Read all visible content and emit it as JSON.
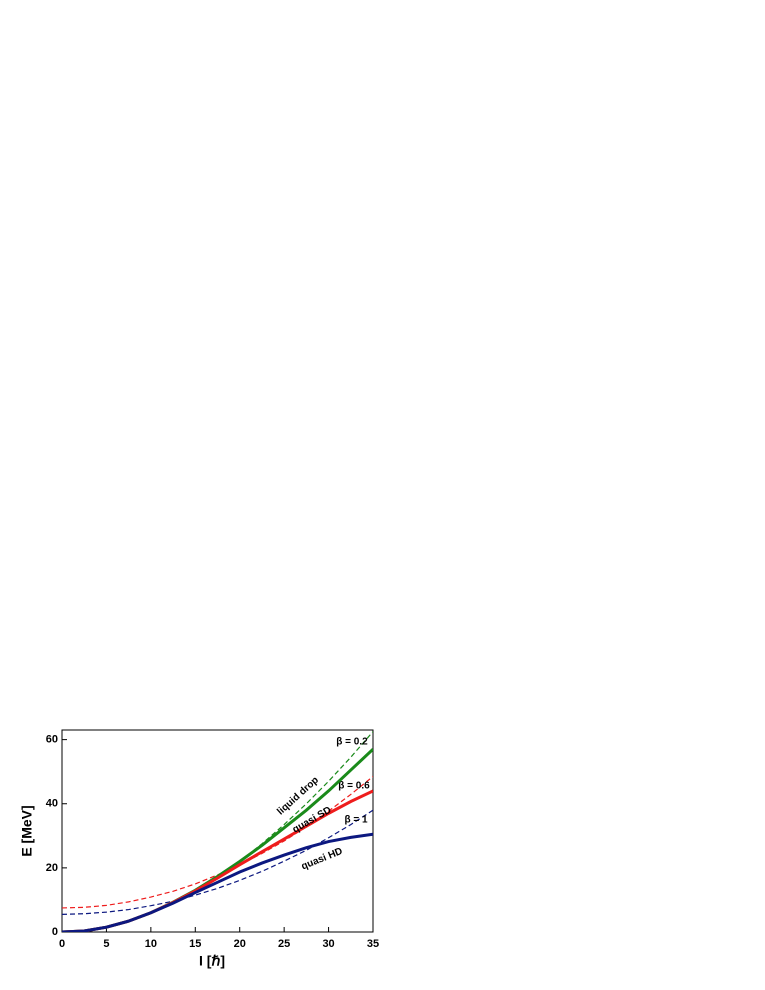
{
  "chart_data": {
    "type": "line",
    "xlabel": "I [ℏ]",
    "ylabel": "E [MeV]",
    "x": [
      0,
      2.5,
      5,
      7.5,
      10,
      12.5,
      15,
      17.5,
      20,
      22.5,
      25,
      27.5,
      30,
      32.5,
      35
    ],
    "series": [
      {
        "name": "liquid drop",
        "color": "#1a8a1a",
        "dashed": false,
        "values": [
          0,
          0.3,
          1.5,
          3.4,
          6,
          9.3,
          13,
          17.3,
          22,
          27,
          32.5,
          38,
          44,
          50.5,
          57
        ]
      },
      {
        "name": "quasi SD",
        "color": "#ee1c1c",
        "dashed": false,
        "values": [
          0,
          0.3,
          1.5,
          3.4,
          6,
          9.2,
          12.8,
          16.8,
          21,
          25,
          29,
          33,
          37,
          40.7,
          44
        ]
      },
      {
        "name": "quasi HD",
        "color": "#0c1880",
        "dashed": false,
        "values": [
          0,
          0.3,
          1.5,
          3.4,
          6,
          9,
          12.3,
          15.5,
          18.7,
          21.5,
          24,
          26.3,
          28.2,
          29.5,
          30.5
        ]
      },
      {
        "name": "β = 0.2",
        "color": "#1a8a1a",
        "dashed": true,
        "values": [
          null,
          null,
          null,
          null,
          null,
          9,
          12.7,
          17,
          22,
          27.5,
          33.5,
          40,
          47,
          54.5,
          62.5
        ]
      },
      {
        "name": "β = 0.6",
        "color": "#ee1c1c",
        "dashed": true,
        "values": [
          7.5,
          7.7,
          8.3,
          9.4,
          10.9,
          12.7,
          15,
          17.8,
          20.9,
          24.5,
          28.4,
          32.8,
          37.7,
          42.9,
          48.5
        ]
      },
      {
        "name": "β = 1",
        "color": "#0c1880",
        "dashed": true,
        "values": [
          5.5,
          5.7,
          6.2,
          7,
          8.2,
          9.6,
          11.5,
          13.6,
          16.1,
          18.9,
          22.1,
          25.5,
          29.4,
          33.5,
          38
        ]
      }
    ],
    "xlim": [
      0,
      35
    ],
    "xticks": [
      0,
      5,
      10,
      15,
      20,
      25,
      30,
      35
    ],
    "ylim": [
      0,
      63
    ],
    "yticks": [
      0,
      20,
      40,
      60
    ]
  }
}
